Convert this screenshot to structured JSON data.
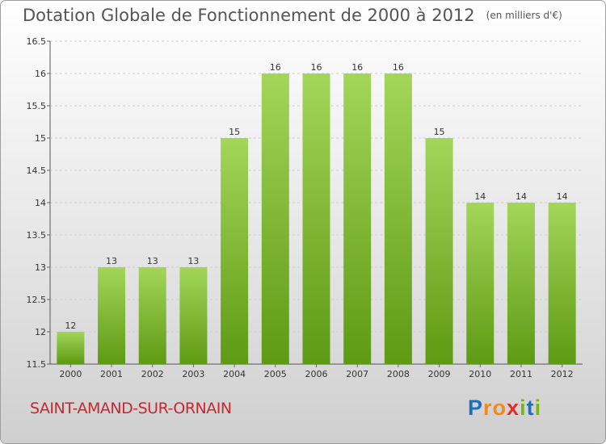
{
  "header": {
    "title": "Dotation Globale de Fonctionnement de 2000 à 2012",
    "unit": "(en milliers d'€)"
  },
  "footer": {
    "city": "SAINT-AMAND-SUR-ORNAIN",
    "logo": "Proxiti"
  },
  "colors": {
    "bar_top": "#a3d65a",
    "bar_bottom": "#5e9a13",
    "city": "#c8282d"
  },
  "chart_data": {
    "type": "bar",
    "categories": [
      "2000",
      "2001",
      "2002",
      "2003",
      "2004",
      "2005",
      "2006",
      "2007",
      "2008",
      "2009",
      "2010",
      "2011",
      "2012"
    ],
    "values": [
      12,
      13,
      13,
      13,
      15,
      16,
      16,
      16,
      16,
      15,
      14,
      14,
      14
    ],
    "ylim": [
      11.5,
      16.5
    ],
    "yticks": [
      "11.5",
      "12",
      "12.5",
      "13",
      "13.5",
      "14",
      "14.5",
      "15",
      "15.5",
      "16",
      "16.5"
    ],
    "grid": true,
    "xlabel": "",
    "ylabel": ""
  }
}
